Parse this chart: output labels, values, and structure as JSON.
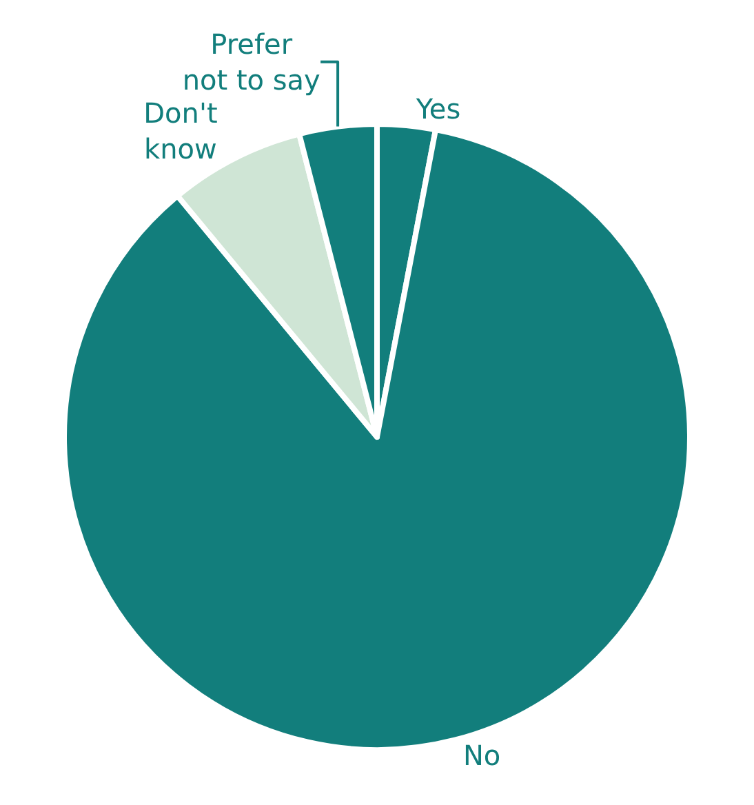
{
  "chart_data": {
    "type": "pie",
    "categories": [
      "Yes",
      "No",
      "Don't know",
      "Prefer not to say"
    ],
    "values": [
      3,
      86,
      7,
      4
    ],
    "colors": [
      "#127e7c",
      "#127e7c",
      "#cfe5d5",
      "#127e7c"
    ],
    "legend": false
  }
}
